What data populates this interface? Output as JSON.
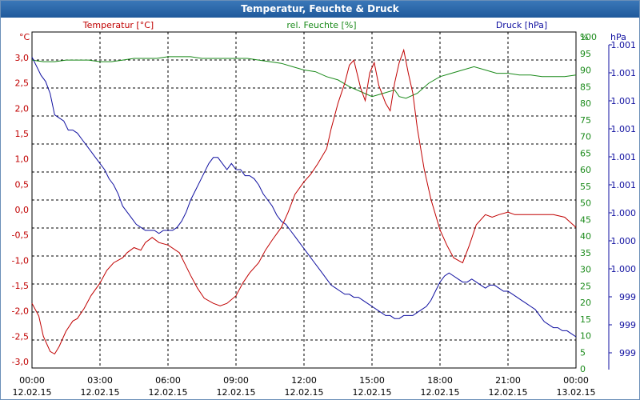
{
  "chart_data": {
    "type": "line",
    "title": "Temperatur, Feuchte & Druck",
    "series": [
      {
        "name": "Temperatur [°C]",
        "unit_label": "°C",
        "color": "#c00000",
        "axis": "left",
        "ylim": [
          -3.0,
          3.0
        ],
        "ticks": [
          "3,0",
          "2,5",
          "2,0",
          "1,5",
          "1,0",
          "0,5",
          "0,0",
          "-0,5",
          "-1,0",
          "-1,5",
          "-2,0",
          "-2,5",
          "-3,0"
        ],
        "x": [
          0,
          0.3,
          0.5,
          0.8,
          1.0,
          1.2,
          1.5,
          1.8,
          2.0,
          2.3,
          2.6,
          3.0,
          3.3,
          3.6,
          4.0,
          4.2,
          4.5,
          4.8,
          5.0,
          5.3,
          5.6,
          6.0,
          6.5,
          7.0,
          7.3,
          7.6,
          8.0,
          8.3,
          8.6,
          9.0,
          9.3,
          9.6,
          10.0,
          10.3,
          10.6,
          11.0,
          11.3,
          11.6,
          12.0,
          12.3,
          12.6,
          13.0,
          13.2,
          13.5,
          13.8,
          14.0,
          14.2,
          14.5,
          14.7,
          14.9,
          15.1,
          15.3,
          15.6,
          15.8,
          16.0,
          16.2,
          16.4,
          16.6,
          16.8,
          17.0,
          17.3,
          17.6,
          18.0,
          18.3,
          18.6,
          19.0,
          19.3,
          19.6,
          20.0,
          20.3,
          20.6,
          21.0,
          21.3,
          21.6,
          22.0,
          22.5,
          23.0,
          23.5,
          24.0
        ],
        "y": [
          -1.85,
          -2.1,
          -2.5,
          -2.8,
          -2.85,
          -2.7,
          -2.4,
          -2.2,
          -2.15,
          -1.95,
          -1.7,
          -1.45,
          -1.2,
          -1.05,
          -0.95,
          -0.85,
          -0.75,
          -0.8,
          -0.65,
          -0.55,
          -0.65,
          -0.7,
          -0.85,
          -1.3,
          -1.55,
          -1.75,
          -1.85,
          -1.9,
          -1.85,
          -1.7,
          -1.45,
          -1.25,
          -1.05,
          -0.8,
          -0.6,
          -0.35,
          -0.05,
          0.3,
          0.55,
          0.7,
          0.9,
          1.2,
          1.6,
          2.1,
          2.5,
          2.85,
          2.95,
          2.4,
          2.15,
          2.7,
          2.9,
          2.45,
          2.1,
          1.95,
          2.5,
          2.9,
          3.15,
          2.7,
          2.3,
          1.6,
          0.8,
          0.2,
          -0.4,
          -0.7,
          -0.95,
          -1.05,
          -0.7,
          -0.3,
          -0.1,
          -0.15,
          -0.1,
          -0.05,
          -0.1,
          -0.1,
          -0.1,
          -0.1,
          -0.1,
          -0.15,
          -0.35
        ]
      },
      {
        "name": "rel. Feuchte [%]",
        "unit_label": "%",
        "color": "#1a8a1a",
        "axis": "right1",
        "ylim": [
          0,
          100
        ],
        "ticks": [
          "100",
          "95",
          "90",
          "85",
          "80",
          "75",
          "70",
          "65",
          "60",
          "55",
          "50",
          "45",
          "40",
          "35",
          "30",
          "25",
          "20",
          "15",
          "10",
          "5",
          "0"
        ],
        "x": [
          0,
          0.5,
          1.0,
          1.5,
          2.0,
          2.5,
          3.0,
          3.5,
          4.0,
          4.5,
          5.0,
          5.5,
          6.0,
          6.5,
          7.0,
          7.5,
          8.0,
          8.5,
          9.0,
          9.5,
          10.0,
          10.5,
          11.0,
          11.5,
          12.0,
          12.5,
          13.0,
          13.5,
          14.0,
          14.5,
          15.0,
          15.5,
          16.0,
          16.2,
          16.5,
          17.0,
          17.5,
          18.0,
          18.5,
          19.0,
          19.5,
          20.0,
          20.5,
          21.0,
          21.5,
          22.0,
          22.5,
          23.0,
          23.5,
          24.0
        ],
        "y": [
          93,
          92.5,
          92.5,
          93,
          93,
          93,
          92.5,
          92.5,
          93,
          93.5,
          93.5,
          93.5,
          94,
          94,
          94,
          93.5,
          93.5,
          93.5,
          93.5,
          93.5,
          93,
          92.5,
          92,
          91,
          90,
          89.5,
          88,
          87,
          85,
          83.5,
          82,
          83,
          84,
          82,
          81.5,
          83,
          86,
          88,
          89,
          90,
          91,
          90,
          89,
          89,
          88.5,
          88.5,
          88,
          88,
          88,
          88.5
        ]
      },
      {
        "name": "Druck [hPa]",
        "unit_label": "hPa",
        "color": "#1010a0",
        "axis": "right2",
        "ticks": [
          "1.001",
          "1.001",
          "1.001",
          "1.001",
          "1.001",
          "1.001",
          "1.000",
          "1.000",
          "1.000",
          "999",
          "999",
          "999"
        ],
        "x": [
          0,
          0.2,
          0.4,
          0.6,
          0.8,
          1.0,
          1.2,
          1.4,
          1.6,
          1.8,
          2.0,
          2.2,
          2.4,
          2.6,
          2.8,
          3.0,
          3.2,
          3.4,
          3.6,
          3.8,
          4.0,
          4.2,
          4.4,
          4.6,
          4.8,
          5.0,
          5.2,
          5.4,
          5.6,
          5.8,
          6.0,
          6.2,
          6.4,
          6.6,
          6.8,
          7.0,
          7.2,
          7.4,
          7.6,
          7.8,
          8.0,
          8.2,
          8.4,
          8.6,
          8.8,
          9.0,
          9.2,
          9.4,
          9.6,
          9.8,
          10.0,
          10.2,
          10.4,
          10.6,
          10.8,
          11.0,
          11.2,
          11.4,
          11.6,
          11.8,
          12.0,
          12.2,
          12.4,
          12.6,
          12.8,
          13.0,
          13.2,
          13.4,
          13.6,
          13.8,
          14.0,
          14.2,
          14.4,
          14.6,
          14.8,
          15.0,
          15.2,
          15.4,
          15.6,
          15.8,
          16.0,
          16.2,
          16.4,
          16.6,
          16.8,
          17.0,
          17.2,
          17.4,
          17.6,
          17.8,
          18.0,
          18.2,
          18.4,
          18.6,
          18.8,
          19.0,
          19.2,
          19.4,
          19.6,
          19.8,
          20.0,
          20.2,
          20.4,
          20.6,
          20.8,
          21.0,
          21.2,
          21.4,
          21.6,
          21.8,
          22.0,
          22.2,
          22.4,
          22.6,
          22.8,
          23.0,
          23.2,
          23.4,
          23.6,
          23.8,
          24.0
        ],
        "y": [
          97,
          94,
          91,
          89,
          85,
          78,
          77,
          76,
          73,
          73,
          72,
          70,
          68,
          66,
          64,
          62,
          60,
          57,
          55,
          52,
          48,
          46,
          44,
          42,
          41,
          40,
          40,
          40,
          39,
          40,
          40,
          40,
          41,
          43,
          46,
          50,
          53,
          56,
          59,
          62,
          64,
          64,
          62,
          60,
          62,
          60,
          60,
          58,
          58,
          57,
          55,
          52,
          50,
          48,
          45,
          43,
          42,
          40,
          38,
          36,
          34,
          32,
          30,
          28,
          26,
          24,
          22,
          21,
          20,
          19,
          19,
          18,
          18,
          17,
          16,
          15,
          14,
          13,
          12,
          12,
          11,
          11,
          12,
          12,
          12,
          13,
          14,
          15,
          17,
          20,
          23,
          25,
          26,
          25,
          24,
          23,
          23,
          24,
          23,
          22,
          21,
          22,
          22,
          21,
          20,
          20,
          19,
          18,
          17,
          16,
          15,
          14,
          12,
          10,
          9,
          8,
          8,
          7,
          7,
          6,
          5
        ]
      }
    ],
    "x_ticks": [
      {
        "time": "00:00",
        "date": "12.02.15"
      },
      {
        "time": "03:00",
        "date": "12.02.15"
      },
      {
        "time": "06:00",
        "date": "12.02.15"
      },
      {
        "time": "09:00",
        "date": "12.02.15"
      },
      {
        "time": "12:00",
        "date": "12.02.15"
      },
      {
        "time": "15:00",
        "date": "12.02.15"
      },
      {
        "time": "18:00",
        "date": "12.02.15"
      },
      {
        "time": "21:00",
        "date": "12.02.15"
      },
      {
        "time": "00:00",
        "date": "13.02.15"
      }
    ],
    "x_range_hours": [
      0,
      24
    ],
    "grid": true
  },
  "colors": {
    "title_bar": "#2a64a8",
    "grid": "#000000"
  }
}
